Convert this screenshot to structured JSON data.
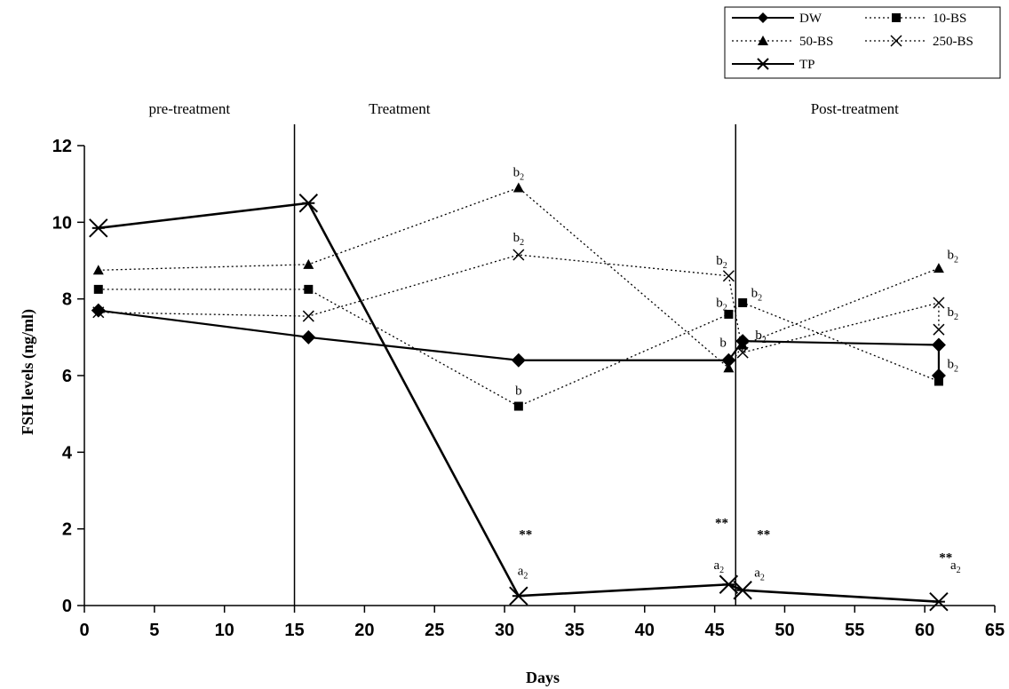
{
  "chart_data": {
    "type": "line",
    "xlabel": "Days",
    "ylabel": "FSH levels (ng/ml)",
    "xlim": [
      0,
      65
    ],
    "ylim": [
      0,
      12
    ],
    "x_ticks": [
      "0",
      "5",
      "10",
      "15",
      "20",
      "25",
      "30",
      "35",
      "40",
      "45",
      "50",
      "55",
      "60",
      "65"
    ],
    "y_ticks": [
      "0",
      "2",
      "4",
      "6",
      "8",
      "10",
      "12"
    ],
    "grid": false,
    "legend_position": "top-right",
    "phase_labels": [
      {
        "text": "pre-treatment",
        "x": 7.5
      },
      {
        "text": "Treatment",
        "x": 22.5
      },
      {
        "text": "Post-treatment",
        "x": 55
      }
    ],
    "phase_boundaries": [
      15,
      46.5
    ],
    "series": [
      {
        "name": "DW",
        "marker": "diamond",
        "style": "solid",
        "color": "#000000",
        "points": [
          [
            1,
            7.7
          ],
          [
            16,
            7.0
          ],
          [
            31,
            6.4
          ],
          [
            46,
            6.4
          ],
          [
            47,
            6.9
          ],
          [
            61,
            6.8
          ],
          [
            61,
            6.0
          ]
        ]
      },
      {
        "name": "10-BS",
        "marker": "square",
        "style": "dotted",
        "color": "#000000",
        "points": [
          [
            1,
            8.25
          ],
          [
            16,
            8.25
          ],
          [
            31,
            5.2
          ],
          [
            46,
            7.6
          ],
          [
            47,
            7.9
          ],
          [
            61,
            5.85
          ]
        ]
      },
      {
        "name": "50-BS",
        "marker": "triangle",
        "style": "dotted",
        "color": "#000000",
        "points": [
          [
            1,
            8.75
          ],
          [
            16,
            8.9
          ],
          [
            31,
            10.9
          ],
          [
            46,
            6.2
          ],
          [
            47,
            6.8
          ],
          [
            61,
            8.8
          ]
        ]
      },
      {
        "name": "250-BS",
        "marker": "x",
        "style": "dotted",
        "color": "#000000",
        "points": [
          [
            1,
            7.65
          ],
          [
            16,
            7.55
          ],
          [
            31,
            9.15
          ],
          [
            46,
            8.6
          ],
          [
            47,
            6.6
          ],
          [
            61,
            7.9
          ],
          [
            61,
            7.2
          ]
        ]
      },
      {
        "name": "TP",
        "marker": "asterisk",
        "style": "solid",
        "color": "#000000",
        "points": [
          [
            1,
            9.85
          ],
          [
            16,
            10.5
          ],
          [
            31,
            0.25
          ],
          [
            46,
            0.55
          ],
          [
            47,
            0.4
          ],
          [
            61,
            0.1
          ]
        ]
      }
    ],
    "annotations": [
      {
        "text": "b",
        "sub": "2",
        "x": 31,
        "y": 11.2
      },
      {
        "text": "b",
        "sub": "2",
        "x": 31,
        "y": 9.5
      },
      {
        "text": "b",
        "sub": "",
        "x": 31,
        "y": 5.5
      },
      {
        "text": "b",
        "sub": "2",
        "x": 45.5,
        "y": 8.9
      },
      {
        "text": "b",
        "sub": "2",
        "x": 45.5,
        "y": 7.8
      },
      {
        "text": "b",
        "sub": "",
        "x": 45.6,
        "y": 6.75
      },
      {
        "text": "b",
        "sub": "2",
        "x": 48,
        "y": 8.05
      },
      {
        "text": "b",
        "sub": "2",
        "x": 48.3,
        "y": 6.95
      },
      {
        "text": "b",
        "sub": "2",
        "x": 62,
        "y": 9.05
      },
      {
        "text": "b",
        "sub": "2",
        "x": 62,
        "y": 7.55
      },
      {
        "text": "b",
        "sub": "2",
        "x": 62,
        "y": 6.2
      },
      {
        "text": "a",
        "sub": "2",
        "x": 31.3,
        "y": 0.8
      },
      {
        "text": "a",
        "sub": "2",
        "x": 45.3,
        "y": 0.95
      },
      {
        "text": "a",
        "sub": "2",
        "x": 48.2,
        "y": 0.75
      },
      {
        "text": "a",
        "sub": "2",
        "x": 62.2,
        "y": 0.95
      }
    ],
    "significance_marks": [
      {
        "text": "**",
        "x": 31.5,
        "y": 1.75
      },
      {
        "text": "**",
        "x": 45.5,
        "y": 2.05
      },
      {
        "text": "**",
        "x": 48.5,
        "y": 1.75
      },
      {
        "text": "**",
        "x": 61.5,
        "y": 1.15
      }
    ]
  }
}
